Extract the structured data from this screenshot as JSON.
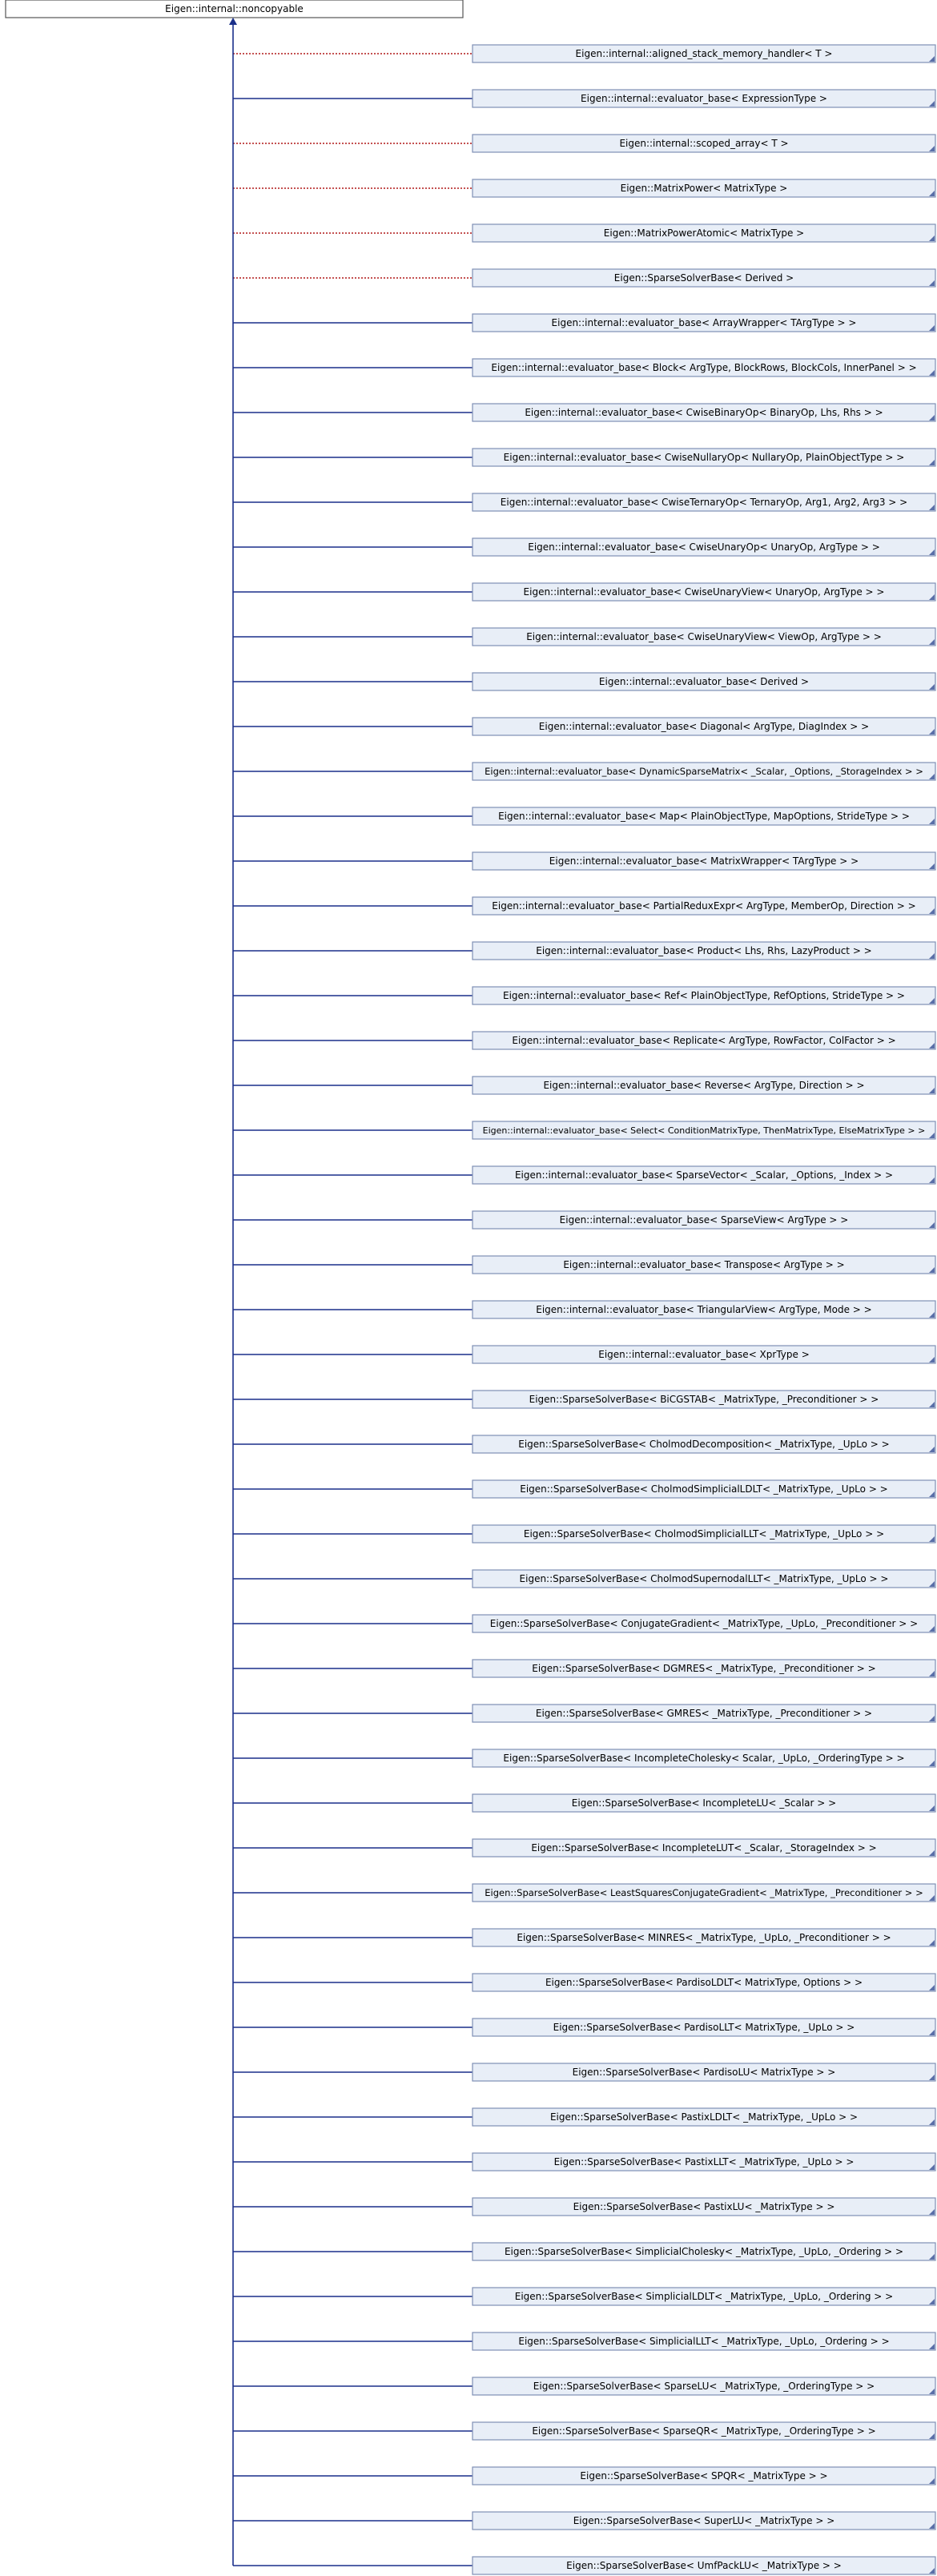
{
  "root": {
    "label": "Eigen::internal::noncopyable"
  },
  "colors": {
    "solid_edge": "#1a2f8a",
    "dotted_edge": "#b01818",
    "node_fill": "#e8eef7",
    "node_border": "#7f8fb5"
  },
  "nodes": [
    {
      "label": "Eigen::internal::aligned_stack_memory_handler< T >",
      "edge": "dotted"
    },
    {
      "label": "Eigen::internal::evaluator_base< ExpressionType >",
      "edge": "solid"
    },
    {
      "label": "Eigen::internal::scoped_array< T >",
      "edge": "dotted"
    },
    {
      "label": "Eigen::MatrixPower< MatrixType >",
      "edge": "dotted"
    },
    {
      "label": "Eigen::MatrixPowerAtomic< MatrixType >",
      "edge": "dotted"
    },
    {
      "label": "Eigen::SparseSolverBase< Derived >",
      "edge": "dotted"
    },
    {
      "label": "Eigen::internal::evaluator_base< ArrayWrapper< TArgType > >",
      "edge": "solid"
    },
    {
      "label": "Eigen::internal::evaluator_base< Block< ArgType, BlockRows, BlockCols, InnerPanel > >",
      "edge": "solid"
    },
    {
      "label": "Eigen::internal::evaluator_base< CwiseBinaryOp< BinaryOp, Lhs, Rhs > >",
      "edge": "solid"
    },
    {
      "label": "Eigen::internal::evaluator_base< CwiseNullaryOp< NullaryOp, PlainObjectType > >",
      "edge": "solid"
    },
    {
      "label": "Eigen::internal::evaluator_base< CwiseTernaryOp< TernaryOp, Arg1, Arg2, Arg3 > >",
      "edge": "solid"
    },
    {
      "label": "Eigen::internal::evaluator_base< CwiseUnaryOp< UnaryOp, ArgType > >",
      "edge": "solid"
    },
    {
      "label": "Eigen::internal::evaluator_base< CwiseUnaryView< UnaryOp, ArgType > >",
      "edge": "solid"
    },
    {
      "label": "Eigen::internal::evaluator_base< CwiseUnaryView< ViewOp, ArgType > >",
      "edge": "solid"
    },
    {
      "label": "Eigen::internal::evaluator_base< Derived >",
      "edge": "solid"
    },
    {
      "label": "Eigen::internal::evaluator_base< Diagonal< ArgType, DiagIndex > >",
      "edge": "solid"
    },
    {
      "label": "Eigen::internal::evaluator_base< DynamicSparseMatrix< _Scalar, _Options, _StorageIndex > >",
      "edge": "solid"
    },
    {
      "label": "Eigen::internal::evaluator_base< Map< PlainObjectType, MapOptions, StrideType > >",
      "edge": "solid"
    },
    {
      "label": "Eigen::internal::evaluator_base< MatrixWrapper< TArgType > >",
      "edge": "solid"
    },
    {
      "label": "Eigen::internal::evaluator_base< PartialReduxExpr< ArgType, MemberOp, Direction > >",
      "edge": "solid"
    },
    {
      "label": "Eigen::internal::evaluator_base< Product< Lhs, Rhs, LazyProduct > >",
      "edge": "solid"
    },
    {
      "label": "Eigen::internal::evaluator_base< Ref< PlainObjectType, RefOptions, StrideType > >",
      "edge": "solid"
    },
    {
      "label": "Eigen::internal::evaluator_base< Replicate< ArgType, RowFactor, ColFactor > >",
      "edge": "solid"
    },
    {
      "label": "Eigen::internal::evaluator_base< Reverse< ArgType, Direction > >",
      "edge": "solid"
    },
    {
      "label": "Eigen::internal::evaluator_base< Select< ConditionMatrixType, ThenMatrixType, ElseMatrixType > >",
      "edge": "solid"
    },
    {
      "label": "Eigen::internal::evaluator_base< SparseVector< _Scalar, _Options, _Index > >",
      "edge": "solid"
    },
    {
      "label": "Eigen::internal::evaluator_base< SparseView< ArgType > >",
      "edge": "solid"
    },
    {
      "label": "Eigen::internal::evaluator_base< Transpose< ArgType > >",
      "edge": "solid"
    },
    {
      "label": "Eigen::internal::evaluator_base< TriangularView< ArgType, Mode > >",
      "edge": "solid"
    },
    {
      "label": "Eigen::internal::evaluator_base< XprType >",
      "edge": "solid"
    },
    {
      "label": "Eigen::SparseSolverBase< BiCGSTAB< _MatrixType, _Preconditioner > >",
      "edge": "solid"
    },
    {
      "label": "Eigen::SparseSolverBase< CholmodDecomposition< _MatrixType, _UpLo > >",
      "edge": "solid"
    },
    {
      "label": "Eigen::SparseSolverBase< CholmodSimplicialLDLT< _MatrixType, _UpLo > >",
      "edge": "solid"
    },
    {
      "label": "Eigen::SparseSolverBase< CholmodSimplicialLLT< _MatrixType, _UpLo > >",
      "edge": "solid"
    },
    {
      "label": "Eigen::SparseSolverBase< CholmodSupernodalLLT< _MatrixType, _UpLo > >",
      "edge": "solid"
    },
    {
      "label": "Eigen::SparseSolverBase< ConjugateGradient< _MatrixType, _UpLo, _Preconditioner > >",
      "edge": "solid"
    },
    {
      "label": "Eigen::SparseSolverBase< DGMRES< _MatrixType, _Preconditioner > >",
      "edge": "solid"
    },
    {
      "label": "Eigen::SparseSolverBase< GMRES< _MatrixType, _Preconditioner > >",
      "edge": "solid"
    },
    {
      "label": "Eigen::SparseSolverBase< IncompleteCholesky< Scalar, _UpLo, _OrderingType > >",
      "edge": "solid"
    },
    {
      "label": "Eigen::SparseSolverBase< IncompleteLU< _Scalar > >",
      "edge": "solid"
    },
    {
      "label": "Eigen::SparseSolverBase< IncompleteLUT< _Scalar, _StorageIndex > >",
      "edge": "solid"
    },
    {
      "label": "Eigen::SparseSolverBase< LeastSquaresConjugateGradient< _MatrixType, _Preconditioner > >",
      "edge": "solid"
    },
    {
      "label": "Eigen::SparseSolverBase< MINRES< _MatrixType, _UpLo, _Preconditioner > >",
      "edge": "solid"
    },
    {
      "label": "Eigen::SparseSolverBase< PardisoLDLT< MatrixType, Options > >",
      "edge": "solid"
    },
    {
      "label": "Eigen::SparseSolverBase< PardisoLLT< MatrixType, _UpLo > >",
      "edge": "solid"
    },
    {
      "label": "Eigen::SparseSolverBase< PardisoLU< MatrixType > >",
      "edge": "solid"
    },
    {
      "label": "Eigen::SparseSolverBase< PastixLDLT< _MatrixType, _UpLo > >",
      "edge": "solid"
    },
    {
      "label": "Eigen::SparseSolverBase< PastixLLT< _MatrixType, _UpLo > >",
      "edge": "solid"
    },
    {
      "label": "Eigen::SparseSolverBase< PastixLU< _MatrixType > >",
      "edge": "solid"
    },
    {
      "label": "Eigen::SparseSolverBase< SimplicialCholesky< _MatrixType, _UpLo, _Ordering > >",
      "edge": "solid"
    },
    {
      "label": "Eigen::SparseSolverBase< SimplicialLDLT< _MatrixType, _UpLo, _Ordering > >",
      "edge": "solid"
    },
    {
      "label": "Eigen::SparseSolverBase< SimplicialLLT< _MatrixType, _UpLo, _Ordering > >",
      "edge": "solid"
    },
    {
      "label": "Eigen::SparseSolverBase< SparseLU< _MatrixType, _OrderingType > >",
      "edge": "solid"
    },
    {
      "label": "Eigen::SparseSolverBase< SparseQR< _MatrixType, _OrderingType > >",
      "edge": "solid"
    },
    {
      "label": "Eigen::SparseSolverBase< SPQR< _MatrixType > >",
      "edge": "solid"
    },
    {
      "label": "Eigen::SparseSolverBase< SuperLU< _MatrixType > >",
      "edge": "solid"
    },
    {
      "label": "Eigen::SparseSolverBase< UmfPackLU< _MatrixType > >",
      "edge": "solid"
    }
  ]
}
